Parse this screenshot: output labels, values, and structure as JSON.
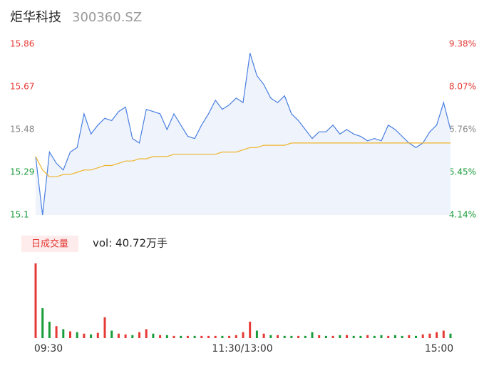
{
  "header": {
    "name": "炬华科技",
    "code": "300360.SZ"
  },
  "chart_data": {
    "type": "line",
    "ylim": [
      15.1,
      15.86
    ],
    "yticks": [
      15.1,
      15.29,
      15.48,
      15.67,
      15.86
    ],
    "ytick_colors": [
      "#1a9c3a",
      "#1a9c3a",
      "#888888",
      "#e53935",
      "#e53935"
    ],
    "y2lim": [
      4.14,
      9.38
    ],
    "y2ticks": [
      {
        "value": 4.14,
        "label": "4.14%"
      },
      {
        "value": 5.45,
        "label": "5.45%"
      },
      {
        "value": 6.76,
        "label": "6.76%"
      },
      {
        "value": 8.07,
        "label": "8.07%"
      },
      {
        "value": 9.38,
        "label": "9.38%"
      }
    ],
    "y2tick_colors": [
      "#1a9c3a",
      "#1a9c3a",
      "#888888",
      "#e53935",
      "#e53935"
    ],
    "xlabels": [
      "09:30",
      "11:30/13:00",
      "15:00"
    ],
    "area_color": "#eef3fc",
    "series": [
      {
        "color": "#4a7fe0",
        "values": [
          15.36,
          15.1,
          15.38,
          15.33,
          15.3,
          15.38,
          15.4,
          15.55,
          15.46,
          15.5,
          15.53,
          15.52,
          15.56,
          15.58,
          15.44,
          15.42,
          15.57,
          15.56,
          15.55,
          15.48,
          15.55,
          15.5,
          15.45,
          15.44,
          15.5,
          15.55,
          15.61,
          15.57,
          15.59,
          15.62,
          15.6,
          15.82,
          15.72,
          15.68,
          15.62,
          15.6,
          15.63,
          15.55,
          15.52,
          15.48,
          15.44,
          15.47,
          15.47,
          15.5,
          15.46,
          15.48,
          15.46,
          15.45,
          15.43,
          15.44,
          15.43,
          15.5,
          15.48,
          15.45,
          15.42,
          15.4,
          15.42,
          15.47,
          15.5,
          15.6,
          15.48
        ]
      },
      {
        "color": "#f0b429",
        "values": [
          15.36,
          15.3,
          15.27,
          15.27,
          15.28,
          15.28,
          15.29,
          15.3,
          15.3,
          15.31,
          15.32,
          15.32,
          15.33,
          15.34,
          15.34,
          15.35,
          15.35,
          15.36,
          15.36,
          15.36,
          15.37,
          15.37,
          15.37,
          15.37,
          15.37,
          15.37,
          15.37,
          15.38,
          15.38,
          15.38,
          15.39,
          15.4,
          15.4,
          15.41,
          15.41,
          15.41,
          15.41,
          15.42,
          15.42,
          15.42,
          15.42,
          15.42,
          15.42,
          15.42,
          15.42,
          15.42,
          15.42,
          15.42,
          15.42,
          15.42,
          15.42,
          15.42,
          15.42,
          15.42,
          15.42,
          15.42,
          15.42,
          15.42,
          15.42,
          15.42,
          15.42
        ]
      }
    ]
  },
  "volume": {
    "badge": "日成交量",
    "label": "vol: 40.72万手",
    "ylim": [
      0,
      100
    ],
    "values": [
      100,
      40,
      22,
      16,
      12,
      9,
      8,
      6,
      5,
      7,
      28,
      10,
      6,
      5,
      4,
      8,
      12,
      6,
      4,
      4,
      3,
      3,
      3,
      3,
      3,
      3,
      3,
      3,
      3,
      4,
      8,
      22,
      10,
      6,
      4,
      4,
      3,
      3,
      3,
      3,
      8,
      4,
      3,
      3,
      4,
      4,
      3,
      3,
      4,
      3,
      4,
      3,
      4,
      3,
      4,
      3,
      5,
      6,
      8,
      10,
      6
    ],
    "colors": [
      "#e53935",
      "#1a9c3a",
      "#1a9c3a",
      "#e53935",
      "#1a9c3a",
      "#e53935",
      "#1a9c3a",
      "#e53935",
      "#1a9c3a",
      "#e53935",
      "#e53935",
      "#1a9c3a",
      "#e53935",
      "#e53935",
      "#1a9c3a",
      "#e53935",
      "#e53935",
      "#1a9c3a",
      "#e53935",
      "#1a9c3a",
      "#e53935",
      "#1a9c3a",
      "#e53935",
      "#1a9c3a",
      "#e53935",
      "#e53935",
      "#e53935",
      "#1a9c3a",
      "#e53935",
      "#e53935",
      "#e53935",
      "#e53935",
      "#1a9c3a",
      "#e53935",
      "#1a9c3a",
      "#e53935",
      "#1a9c3a",
      "#1a9c3a",
      "#e53935",
      "#1a9c3a",
      "#1a9c3a",
      "#e53935",
      "#1a9c3a",
      "#e53935",
      "#1a9c3a",
      "#e53935",
      "#1a9c3a",
      "#1a9c3a",
      "#e53935",
      "#1a9c3a",
      "#1a9c3a",
      "#e53935",
      "#1a9c3a",
      "#1a9c3a",
      "#e53935",
      "#1a9c3a",
      "#e53935",
      "#e53935",
      "#e53935",
      "#e53935",
      "#1a9c3a"
    ]
  }
}
